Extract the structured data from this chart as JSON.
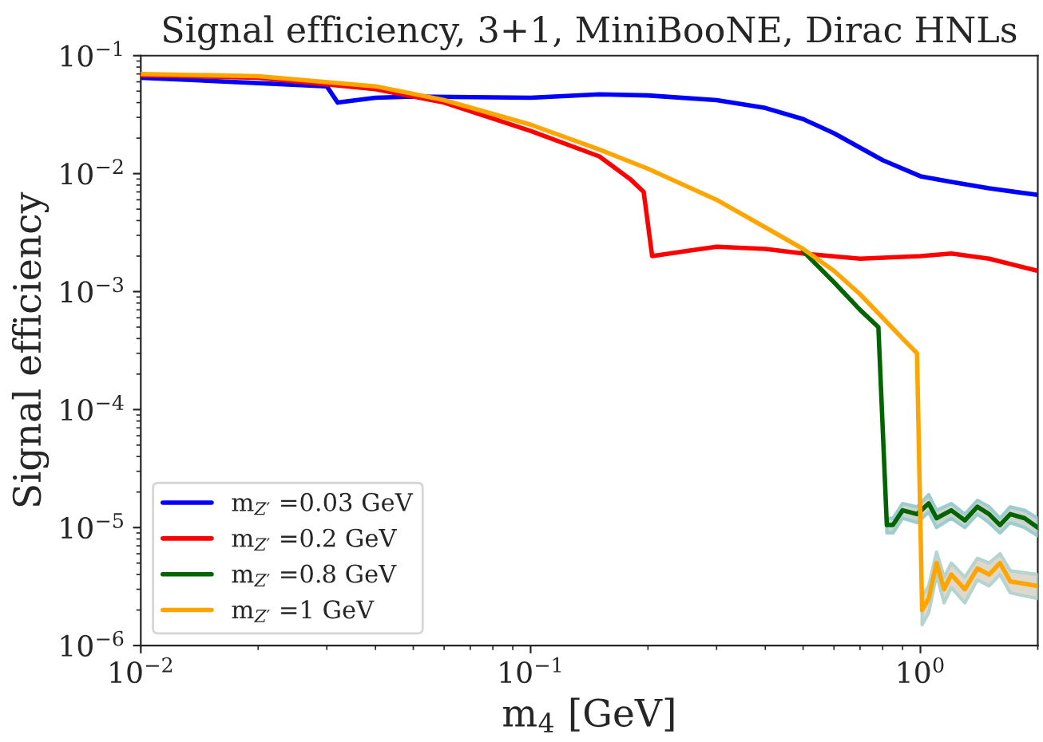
{
  "chart_data": {
    "type": "line",
    "title": "Signal efficiency, 3+1, MiniBooNE, Dirac HNLs",
    "xlabel": "m$_{4}$ [GeV]",
    "ylabel": "Signal efficiency",
    "log": "xy",
    "grid": false,
    "legend": "bottom left",
    "line_style": "solid",
    "marker": "none",
    "xlim": [
      0.01,
      2
    ],
    "ylim": [
      1e-06,
      0.1
    ],
    "xticks": [
      {
        "value": 0.01,
        "label": "10$^{−2}$"
      },
      {
        "value": 0.1,
        "label": "10$^{−1}$"
      },
      {
        "value": 1,
        "label": "10$^{0}$"
      }
    ],
    "yticks": [
      {
        "value": 1e-06,
        "label": "10$^{−6}$"
      },
      {
        "value": 1e-05,
        "label": "10$^{−5}$"
      },
      {
        "value": 0.0001,
        "label": "10$^{−4}$"
      },
      {
        "value": 0.001,
        "label": "10$^{−3}$"
      },
      {
        "value": 0.01,
        "label": "10$^{−2}$"
      },
      {
        "value": 0.1,
        "label": "10$^{−1}$"
      }
    ],
    "series": [
      {
        "name": "m$_{Z′}$ =0.03 GeV",
        "color": "#0000ff",
        "x": [
          0.01,
          0.03,
          0.032,
          0.04,
          0.05,
          0.1,
          0.15,
          0.2,
          0.3,
          0.4,
          0.5,
          0.6,
          0.8,
          1.0,
          1.2,
          1.5,
          2.0
        ],
        "values": [
          0.065,
          0.055,
          0.04,
          0.044,
          0.045,
          0.044,
          0.047,
          0.046,
          0.042,
          0.036,
          0.029,
          0.022,
          0.013,
          0.0095,
          0.0085,
          0.0075,
          0.0066
        ]
      },
      {
        "name": "m$_{Z′}$ =0.2 GeV",
        "color": "#ff0000",
        "x": [
          0.01,
          0.02,
          0.04,
          0.06,
          0.1,
          0.15,
          0.18,
          0.195,
          0.205,
          0.25,
          0.3,
          0.4,
          0.5,
          0.7,
          1.0,
          1.2,
          1.5,
          2.0
        ],
        "values": [
          0.068,
          0.065,
          0.052,
          0.04,
          0.023,
          0.014,
          0.009,
          0.007,
          0.002,
          0.0022,
          0.0024,
          0.0023,
          0.0021,
          0.0019,
          0.002,
          0.0021,
          0.0019,
          0.0015
        ]
      },
      {
        "name": "m$_{Z′}$ =0.8 GeV",
        "color": "#006400",
        "x": [
          0.5,
          0.6,
          0.7,
          0.78,
          0.82,
          0.85,
          0.9,
          0.98,
          1.05,
          1.1,
          1.2,
          1.3,
          1.4,
          1.5,
          1.6,
          1.7,
          1.85,
          2.0
        ],
        "values": [
          0.0022,
          0.0012,
          0.0007,
          0.0005,
          1.05e-05,
          1.05e-05,
          1.4e-05,
          1.3e-05,
          1.6e-05,
          1.2e-05,
          1.4e-05,
          1.15e-05,
          1.5e-05,
          1.3e-05,
          1.05e-05,
          1.3e-05,
          1.2e-05,
          1e-05
        ],
        "lower": [
          null,
          null,
          null,
          null,
          9e-06,
          9e-06,
          1.2e-05,
          1.1e-05,
          1.35e-05,
          1e-05,
          1.2e-05,
          1e-05,
          1.3e-05,
          1.1e-05,
          9e-06,
          1.1e-05,
          1e-05,
          8.5e-06
        ],
        "upper": [
          null,
          null,
          null,
          null,
          1.2e-05,
          1.2e-05,
          1.6e-05,
          1.5e-05,
          1.9e-05,
          1.4e-05,
          1.6e-05,
          1.3e-05,
          1.7e-05,
          1.5e-05,
          1.2e-05,
          1.5e-05,
          1.4e-05,
          1.2e-05
        ]
      },
      {
        "name": "m$_{Z′}$ =1 GeV",
        "color": "#ffa500",
        "x": [
          0.01,
          0.02,
          0.04,
          0.06,
          0.1,
          0.15,
          0.2,
          0.3,
          0.4,
          0.5,
          0.6,
          0.7,
          0.8,
          0.9,
          0.98,
          1.01,
          1.05,
          1.1,
          1.15,
          1.2,
          1.3,
          1.4,
          1.5,
          1.6,
          1.7,
          2.0
        ],
        "values": [
          0.07,
          0.067,
          0.055,
          0.042,
          0.026,
          0.016,
          0.011,
          0.006,
          0.0035,
          0.0023,
          0.0015,
          0.00095,
          0.0006,
          0.0004,
          0.0003,
          2e-06,
          2.5e-06,
          5e-06,
          3e-06,
          4e-06,
          3e-06,
          4.5e-06,
          4e-06,
          5e-06,
          3.5e-06,
          3.2e-06
        ],
        "lower": [
          null,
          null,
          null,
          null,
          null,
          null,
          null,
          null,
          null,
          null,
          null,
          null,
          null,
          null,
          null,
          1.5e-06,
          1.9e-06,
          4e-06,
          2.3e-06,
          3.1e-06,
          2.3e-06,
          3.6e-06,
          3.2e-06,
          4e-06,
          2.8e-06,
          2.5e-06
        ],
        "upper": [
          null,
          null,
          null,
          null,
          null,
          null,
          null,
          null,
          null,
          null,
          null,
          null,
          null,
          null,
          null,
          2.6e-06,
          3.2e-06,
          6.2e-06,
          3.8e-06,
          5e-06,
          3.8e-06,
          5.5e-06,
          5e-06,
          6e-06,
          4.3e-06,
          4e-06
        ]
      }
    ]
  }
}
